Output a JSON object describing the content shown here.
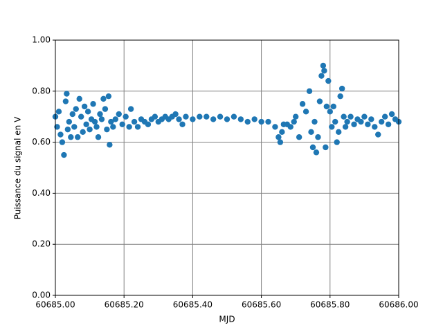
{
  "chart_data": {
    "type": "scatter",
    "xlabel": "MJD",
    "ylabel": "Puissance du signal en V",
    "grid": true,
    "xlim": [
      60685,
      60686
    ],
    "xticks": [
      {
        "value": 60685,
        "label": "60685.00"
      },
      {
        "value": 60685.2,
        "label": "60685.20"
      },
      {
        "value": 60685.4,
        "label": "60685.40"
      },
      {
        "value": 60685.6,
        "label": "60685.60"
      },
      {
        "value": 60685.8,
        "label": "60685.80"
      },
      {
        "value": 60686,
        "label": "60686.00"
      }
    ],
    "ylim": [
      0,
      1
    ],
    "yticks": [
      {
        "value": 0,
        "label": "0.00"
      },
      {
        "value": 0.2,
        "label": "0.20"
      },
      {
        "value": 0.4,
        "label": "0.40"
      },
      {
        "value": 0.6,
        "label": "0.60"
      },
      {
        "value": 0.8,
        "label": "0.80"
      },
      {
        "value": 1,
        "label": "1.00"
      }
    ],
    "series": [
      {
        "color": "#1f77b4",
        "x": [
          60685.0,
          60685.005,
          60685.01,
          60685.015,
          60685.02,
          60685.025,
          60685.03,
          60685.033,
          60685.036,
          60685.04,
          60685.045,
          60685.05,
          60685.055,
          60685.06,
          60685.065,
          60685.07,
          60685.075,
          60685.08,
          60685.085,
          60685.09,
          60685.095,
          60685.1,
          60685.105,
          60685.11,
          60685.115,
          60685.12,
          60685.125,
          60685.13,
          60685.135,
          60685.14,
          60685.145,
          60685.15,
          60685.155,
          60685.158,
          60685.162,
          60685.168,
          60685.175,
          60685.185,
          60685.195,
          60685.205,
          60685.215,
          60685.22,
          60685.23,
          60685.24,
          60685.25,
          60685.26,
          60685.27,
          60685.28,
          60685.29,
          60685.3,
          60685.31,
          60685.32,
          60685.33,
          60685.34,
          60685.35,
          60685.36,
          60685.37,
          60685.38,
          60685.4,
          60685.42,
          60685.44,
          60685.46,
          60685.48,
          60685.5,
          60685.52,
          60685.54,
          60685.56,
          60685.58,
          60685.6,
          60685.62,
          60685.64,
          60685.65,
          60685.655,
          60685.66,
          60685.665,
          60685.675,
          60685.685,
          60685.695,
          60685.7,
          60685.71,
          60685.72,
          60685.73,
          60685.74,
          60685.745,
          60685.75,
          60685.755,
          60685.76,
          60685.765,
          60685.77,
          60685.775,
          60685.78,
          60685.783,
          60685.787,
          60685.79,
          60685.795,
          60685.8,
          60685.805,
          60685.81,
          60685.815,
          60685.82,
          60685.825,
          60685.83,
          60685.835,
          60685.84,
          60685.845,
          60685.85,
          60685.86,
          60685.87,
          60685.88,
          60685.89,
          60685.9,
          60685.91,
          60685.92,
          60685.93,
          60685.94,
          60685.95,
          60685.96,
          60685.97,
          60685.98,
          60685.99,
          60686.0
        ],
        "values": [
          0.7,
          0.66,
          0.72,
          0.63,
          0.6,
          0.55,
          0.76,
          0.79,
          0.65,
          0.68,
          0.62,
          0.71,
          0.66,
          0.73,
          0.62,
          0.77,
          0.7,
          0.64,
          0.74,
          0.67,
          0.72,
          0.65,
          0.69,
          0.75,
          0.68,
          0.66,
          0.62,
          0.71,
          0.69,
          0.77,
          0.73,
          0.65,
          0.78,
          0.59,
          0.68,
          0.66,
          0.69,
          0.71,
          0.67,
          0.7,
          0.66,
          0.73,
          0.68,
          0.66,
          0.69,
          0.68,
          0.67,
          0.69,
          0.7,
          0.68,
          0.69,
          0.7,
          0.69,
          0.7,
          0.71,
          0.69,
          0.67,
          0.7,
          0.69,
          0.7,
          0.7,
          0.69,
          0.7,
          0.69,
          0.7,
          0.69,
          0.68,
          0.69,
          0.68,
          0.68,
          0.66,
          0.62,
          0.6,
          0.64,
          0.67,
          0.67,
          0.66,
          0.68,
          0.7,
          0.62,
          0.75,
          0.72,
          0.8,
          0.64,
          0.58,
          0.68,
          0.56,
          0.62,
          0.76,
          0.86,
          0.9,
          0.88,
          0.58,
          0.74,
          0.84,
          0.72,
          0.66,
          0.74,
          0.68,
          0.6,
          0.64,
          0.78,
          0.81,
          0.7,
          0.66,
          0.68,
          0.7,
          0.67,
          0.69,
          0.68,
          0.7,
          0.67,
          0.69,
          0.66,
          0.63,
          0.68,
          0.7,
          0.67,
          0.71,
          0.69,
          0.68
        ]
      }
    ]
  }
}
